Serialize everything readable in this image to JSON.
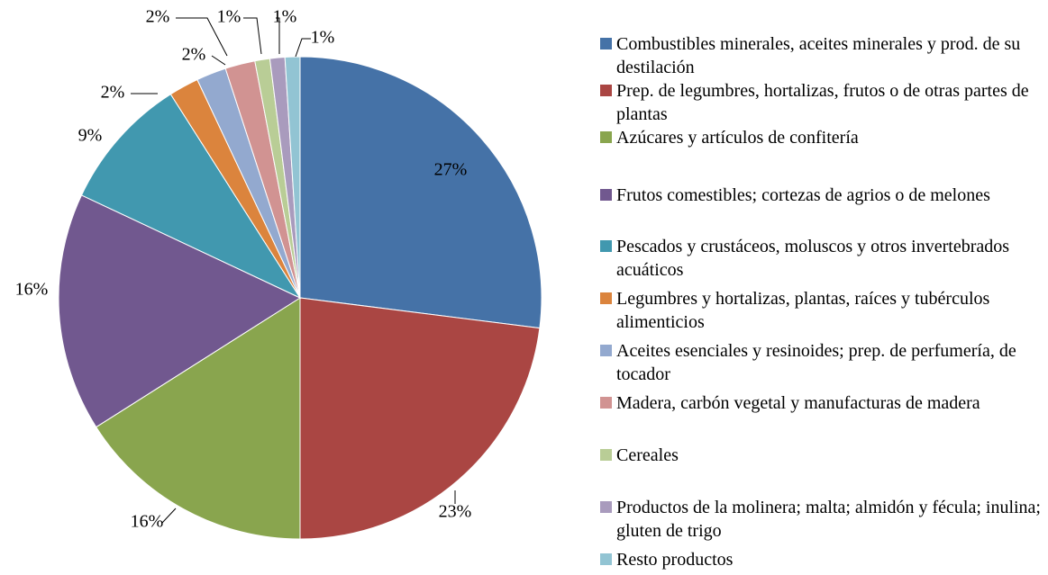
{
  "chart_data": {
    "type": "pie",
    "categories": [
      "Combustibles minerales, aceites minerales y prod. de su destilación",
      "Prep. de legumbres, hortalizas, frutos o de otras partes de plantas",
      "Azúcares y artículos de confitería",
      "Frutos comestibles; cortezas de agrios o de melones",
      "Pescados y crustáceos, moluscos y otros invertebrados acuáticos",
      "Legumbres y hortalizas, plantas, raíces y tubérculos alimenticios",
      "Aceites esenciales y resinoides; prep. de perfumería, de tocador",
      "Madera, carbón vegetal y manufacturas de madera",
      "Cereales",
      "Productos de la molinera; malta; almidón y fécula; inulina; gluten de trigo",
      "Resto productos"
    ],
    "values": [
      27,
      23,
      16,
      16,
      9,
      2,
      2,
      2,
      1,
      1,
      1
    ],
    "value_labels": [
      "27%",
      "23%",
      "16%",
      "16%",
      "9%",
      "2%",
      "2%",
      "2%",
      "1%",
      "1%",
      "1%"
    ],
    "colors": [
      "#4572a7",
      "#aa4643",
      "#89a54e",
      "#71588f",
      "#4198af",
      "#db843d",
      "#93a9cf",
      "#d19392",
      "#b9cd96",
      "#a99bbd",
      "#92c4d3"
    ],
    "legend": "right"
  }
}
